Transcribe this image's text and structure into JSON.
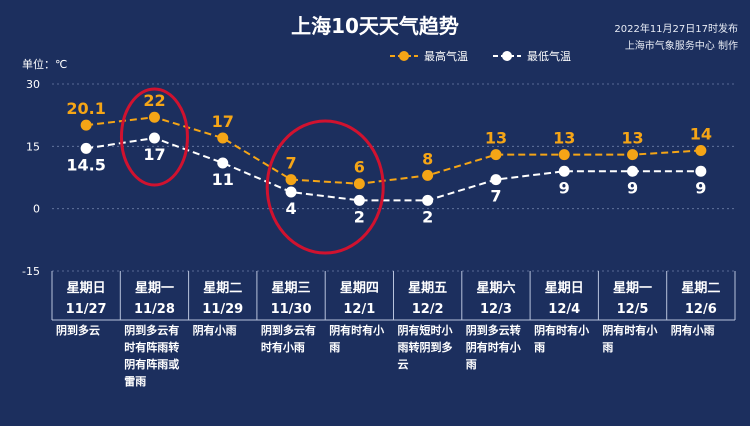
{
  "header": {
    "title": "上海10天天气趋势",
    "publish_time": "2022年11月27日17时发布",
    "publisher": "上海市气象服务中心 制作"
  },
  "colors": {
    "background": "#1c2f5e",
    "high": "#f5a516",
    "low": "#ffffff",
    "highlight_circle": "#d0122f",
    "grid": "#6d7fa6"
  },
  "chart_data": {
    "type": "line",
    "title": "上海10天天气趋势",
    "ylabel": "单位：℃",
    "ylim": [
      -15,
      30
    ],
    "yticks": [
      30,
      15,
      0,
      -15
    ],
    "grid": true,
    "legend_position": "top-right",
    "categories": [
      "11/27",
      "11/28",
      "11/29",
      "11/30",
      "12/1",
      "12/2",
      "12/3",
      "12/4",
      "12/5",
      "12/6"
    ],
    "weekdays": [
      "星期日",
      "星期一",
      "星期二",
      "星期三",
      "星期四",
      "星期五",
      "星期六",
      "星期日",
      "星期一",
      "星期二"
    ],
    "series": [
      {
        "name": "最高气温",
        "values": [
          20.1,
          22,
          17,
          7,
          6,
          8,
          13,
          13,
          13,
          14
        ],
        "labels": [
          "20.1",
          "22",
          "17",
          "7",
          "6",
          "8",
          "13",
          "13",
          "13",
          "14"
        ]
      },
      {
        "name": "最低气温",
        "values": [
          14.5,
          17,
          11,
          4,
          2,
          2,
          7,
          9,
          9,
          9
        ],
        "labels": [
          "14.5",
          "17",
          "11",
          "4",
          "2",
          "2",
          "7",
          "9",
          "9",
          "9"
        ]
      }
    ],
    "descriptions": [
      "阴到多云",
      "阴到多云有时有阵雨转阴有阵雨或雷雨",
      "阴有小雨",
      "阴到多云有时有小雨",
      "阴有时有小雨",
      "阴有短时小雨转阴到多云",
      "阴到多云转阴有时有小雨",
      "阴有时有小雨",
      "阴有时有小雨",
      "阴有小雨"
    ],
    "highlighted_days": [
      1,
      3,
      4
    ]
  }
}
